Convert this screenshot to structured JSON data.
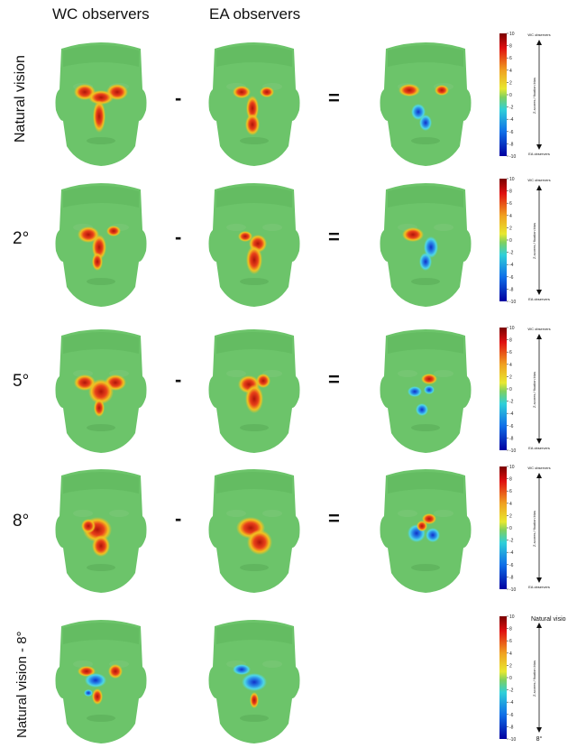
{
  "headers": {
    "wc": "WC observers",
    "ea": "EA observers"
  },
  "rows": [
    {
      "label": "Natural vision",
      "minus": "-",
      "equals": "="
    },
    {
      "label": "2°",
      "minus": "-",
      "equals": "="
    },
    {
      "label": "5°",
      "minus": "-",
      "equals": "="
    },
    {
      "label": "8°",
      "minus": "-",
      "equals": "="
    },
    {
      "label": "Natural vision - 8°"
    }
  ],
  "colorbar": {
    "ticks": [
      "10",
      "8",
      "6",
      "4",
      "2",
      "0",
      "-2",
      "-4",
      "-6",
      "-8",
      "-10"
    ],
    "top_label": "WC observers",
    "bottom_label": "EA observers",
    "axis_label": "Z-scores / fixation bias",
    "last_top_label": "Natural vision",
    "last_bottom_label": "8°"
  },
  "colors": {
    "face_bg": "#6cc46a",
    "hot": "#c81e10",
    "cold": "#1a3fd0"
  }
}
